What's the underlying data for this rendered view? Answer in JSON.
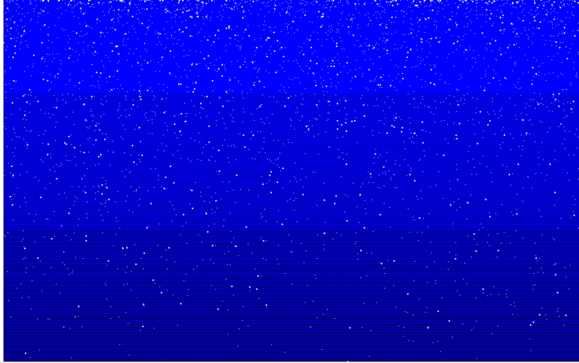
{
  "scene": {
    "description_free": true,
    "colors": {
      "sky_blue": "#0000ff",
      "grid_dark": "#000066",
      "speckle": "#ffffff",
      "border": "#ffffff"
    }
  }
}
